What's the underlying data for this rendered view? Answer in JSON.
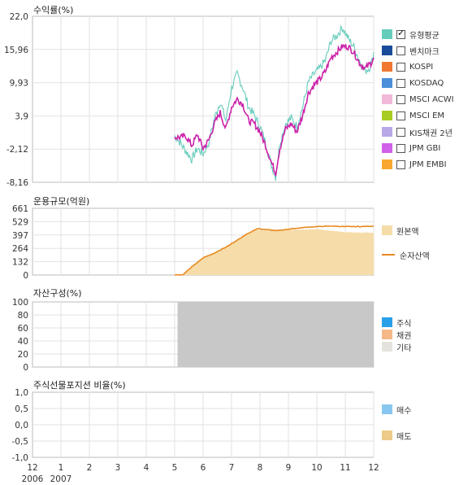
{
  "chart_data": [
    {
      "type": "line",
      "title": "수익률(%)",
      "yticks": [
        "22,0",
        "15,96",
        "9,93",
        "3,9",
        "-2,12",
        "-8,16"
      ],
      "ylim": [
        -8.16,
        22.0
      ],
      "grid": true,
      "legend_placement": "right",
      "legend": [
        {
          "label": "유형평균",
          "color": "#66CCBB",
          "checked": true
        },
        {
          "label": "벤치마크",
          "color": "#1A4C99",
          "checked": false
        },
        {
          "label": "KOSPI",
          "color": "#F07830",
          "checked": false
        },
        {
          "label": "KOSDAQ",
          "color": "#4A90D9",
          "checked": false
        },
        {
          "label": "MSCI ACWI",
          "color": "#F2B8D8",
          "checked": false
        },
        {
          "label": "MSCI EM",
          "color": "#A8CC22",
          "checked": false
        },
        {
          "label": "KIS채권 2년",
          "color": "#B8A8E8",
          "checked": false
        },
        {
          "label": "JPM GBI",
          "color": "#D060E8",
          "checked": false
        },
        {
          "label": "JPM EMBI",
          "color": "#F8A830",
          "checked": false
        }
      ],
      "series": [
        {
          "color": "#CC22AA",
          "x": [
            5.0,
            5.2,
            5.4,
            5.6,
            5.8,
            6.0,
            6.2,
            6.4,
            6.6,
            6.8,
            7.0,
            7.2,
            7.4,
            7.6,
            7.8,
            8.0,
            8.2,
            8.4,
            8.55,
            8.7,
            8.9,
            9.1,
            9.3,
            9.5,
            9.7,
            9.9,
            10.1,
            10.3,
            10.5,
            10.7,
            10.9,
            11.1,
            11.3,
            11.5,
            11.7,
            11.9,
            12.0
          ],
          "y": [
            0.0,
            0.0,
            0.2,
            -1.5,
            0.5,
            -2.0,
            -0.5,
            2.5,
            4.5,
            1.5,
            5.5,
            7.0,
            6.0,
            3.0,
            2.5,
            1.0,
            -1.5,
            -4.5,
            -6.5,
            -2.0,
            1.5,
            2.5,
            1.0,
            4.0,
            8.0,
            9.5,
            10.5,
            12.0,
            14.5,
            15.5,
            16.5,
            16.5,
            15.5,
            13.5,
            12.5,
            13.5,
            14.5
          ]
        },
        {
          "color": "#66CCBB",
          "x": [
            5.0,
            5.2,
            5.4,
            5.6,
            5.8,
            6.0,
            6.2,
            6.4,
            6.6,
            6.8,
            7.0,
            7.2,
            7.4,
            7.6,
            7.8,
            8.0,
            8.2,
            8.4,
            8.55,
            8.7,
            8.9,
            9.1,
            9.3,
            9.5,
            9.7,
            9.9,
            10.1,
            10.3,
            10.5,
            10.7,
            10.9,
            11.1,
            11.3,
            11.5,
            11.7,
            11.9,
            12.0
          ],
          "y": [
            0.3,
            -1.0,
            -2.5,
            -4.0,
            -2.0,
            -3.0,
            -1.0,
            3.5,
            6.5,
            3.0,
            9.0,
            11.5,
            9.0,
            5.5,
            4.0,
            2.0,
            -1.0,
            -5.0,
            -7.2,
            -1.0,
            2.5,
            3.5,
            2.0,
            5.5,
            10.0,
            11.5,
            12.5,
            14.0,
            17.5,
            18.5,
            20.0,
            18.0,
            16.5,
            14.0,
            12.0,
            13.0,
            15.5
          ]
        }
      ]
    },
    {
      "type": "area",
      "title": "운용규모(억원)",
      "yticks": [
        "661",
        "529",
        "397",
        "264",
        "132",
        "0"
      ],
      "ylim": [
        0,
        661
      ],
      "legend_placement": "right",
      "legend": [
        {
          "label": "원본액",
          "color": "#F5DCA8",
          "kind": "box"
        },
        {
          "label": "순자산액",
          "color": "#E88A20",
          "kind": "line"
        }
      ],
      "series": [
        {
          "kind": "area",
          "color": "#F5DCA8",
          "x": [
            5.0,
            5.3,
            5.6,
            6.0,
            6.5,
            7.0,
            7.5,
            7.9,
            8.2,
            8.6,
            9.0,
            9.5,
            10.0,
            10.5,
            11.0,
            11.5,
            12.0
          ],
          "y": [
            0,
            5,
            80,
            170,
            230,
            310,
            400,
            450,
            440,
            440,
            450,
            450,
            455,
            440,
            425,
            420,
            420
          ]
        },
        {
          "kind": "line",
          "color": "#E88A20",
          "x": [
            5.0,
            5.3,
            5.6,
            6.0,
            6.5,
            7.0,
            7.5,
            7.9,
            8.2,
            8.6,
            9.0,
            9.5,
            10.0,
            10.5,
            11.0,
            11.5,
            12.0
          ],
          "y": [
            0,
            5,
            80,
            170,
            230,
            310,
            400,
            460,
            450,
            440,
            455,
            470,
            480,
            485,
            480,
            480,
            485
          ]
        }
      ]
    },
    {
      "type": "area",
      "title": "자산구성(%)",
      "yticks": [
        "100",
        "80",
        "60",
        "40",
        "20",
        "0"
      ],
      "ylim": [
        0,
        100
      ],
      "legend_placement": "right",
      "legend": [
        {
          "label": "주식",
          "color": "#2AA0E8"
        },
        {
          "label": "채권",
          "color": "#F5B888"
        },
        {
          "label": "기타",
          "color": "#E4E4DC"
        }
      ],
      "shaded_region": {
        "x_from": 5.1,
        "x_to": 12.0,
        "y_from": 0,
        "y_to": 100,
        "color": "#C8C8C8"
      }
    },
    {
      "type": "bar",
      "title": "주식선물포지션 비율(%)",
      "yticks": [
        "1,0",
        "0,5",
        "0,0",
        "-0,5",
        "-1,0"
      ],
      "ylim": [
        -1.0,
        1.0
      ],
      "legend_placement": "right",
      "legend": [
        {
          "label": "매수",
          "color": "#88C8F0"
        },
        {
          "label": "매도",
          "color": "#EDCB88"
        }
      ],
      "series": []
    }
  ],
  "x_axis": {
    "ticks": [
      {
        "label": "12",
        "sub": "2006",
        "x": 0
      },
      {
        "label": "1",
        "sub": "2007",
        "x": 1
      },
      {
        "label": "2",
        "x": 2
      },
      {
        "label": "3",
        "x": 3
      },
      {
        "label": "4",
        "x": 4
      },
      {
        "label": "5",
        "x": 5
      },
      {
        "label": "6",
        "x": 6
      },
      {
        "label": "7",
        "x": 7
      },
      {
        "label": "8",
        "x": 8
      },
      {
        "label": "9",
        "x": 9
      },
      {
        "label": "10",
        "x": 10
      },
      {
        "label": "11",
        "x": 11
      },
      {
        "label": "12",
        "x": 12
      }
    ],
    "xlim": [
      0,
      12
    ]
  }
}
